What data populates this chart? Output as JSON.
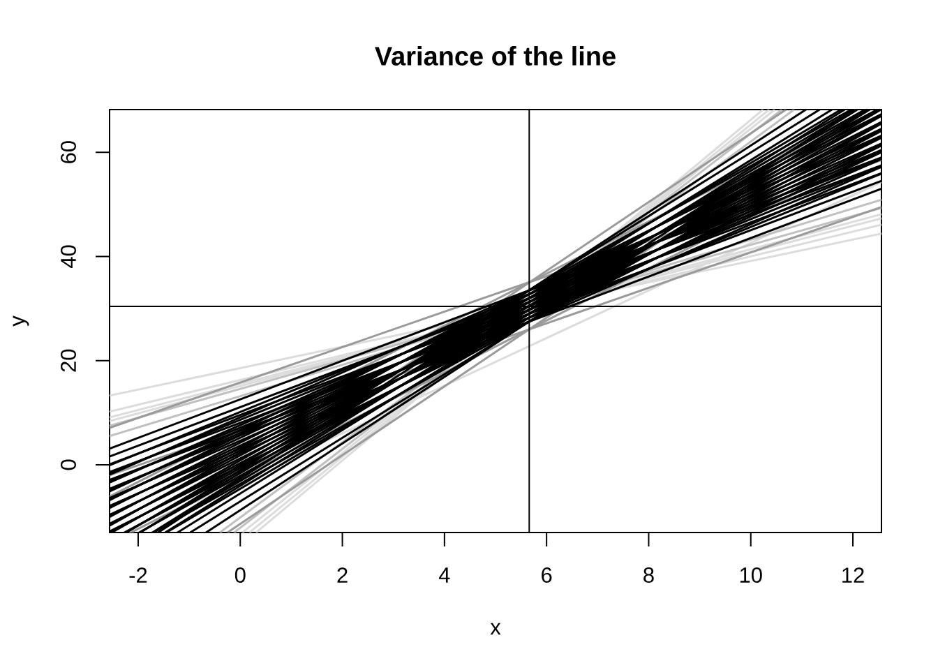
{
  "chart_data": {
    "type": "line",
    "title": "Variance of the line",
    "xlabel": "x",
    "ylabel": "y",
    "xlim": [
      -2.56,
      12.56
    ],
    "ylim": [
      -13,
      68.2
    ],
    "xticks": [
      -2,
      0,
      2,
      4,
      6,
      8,
      10,
      12
    ],
    "yticks": [
      0,
      20,
      40,
      60
    ],
    "series": [
      {
        "color": "#dcdcdc",
        "x": [
          -2.56,
          12.56
        ],
        "values": [
          13.3,
          44.4
        ]
      },
      {
        "color": "#dcdcdc",
        "x": [
          -2.56,
          12.56
        ],
        "values": [
          10.2,
          46.1
        ]
      },
      {
        "color": "#dcdcdc",
        "x": [
          -2.56,
          12.56
        ],
        "values": [
          9.1,
          47.3
        ]
      },
      {
        "color": "#dcdcdc",
        "x": [
          -2.56,
          12.56
        ],
        "values": [
          8.4,
          48.1
        ]
      },
      {
        "color": "#dcdcdc",
        "x": [
          0.31,
          10.24
        ],
        "values": [
          -13,
          68.2
        ]
      },
      {
        "color": "#dcdcdc",
        "x": [
          0.18,
          10.36
        ],
        "values": [
          -13,
          68.2
        ]
      },
      {
        "color": "#dcdcdc",
        "x": [
          0.04,
          10.47
        ],
        "values": [
          -13,
          68.2
        ]
      },
      {
        "color": "#dcdcdc",
        "x": [
          -2.17,
          12.56
        ],
        "values": [
          -13,
          54.3
        ]
      },
      {
        "color": "#c0c0c0",
        "x": [
          -2.56,
          12.56
        ],
        "values": [
          7.5,
          49.3
        ]
      },
      {
        "color": "#c0c0c0",
        "x": [
          -2.56,
          12.56
        ],
        "values": [
          5.5,
          50.9
        ]
      },
      {
        "color": "#c0c0c0",
        "x": [
          -0.12,
          10.61
        ],
        "values": [
          -13,
          68.2
        ]
      },
      {
        "color": "#c0c0c0",
        "x": [
          -0.4,
          10.85
        ],
        "values": [
          -13,
          68.2
        ]
      },
      {
        "color": "#9a9a9a",
        "x": [
          -2.56,
          12.56
        ],
        "values": [
          -2.0,
          49.5
        ]
      },
      {
        "color": "#9a9a9a",
        "x": [
          -2.14,
          12.56
        ],
        "values": [
          -13,
          60.5
        ]
      },
      {
        "color": "#9a9a9a",
        "x": [
          -0.25,
          12.05
        ],
        "values": [
          -13,
          68.2
        ]
      },
      {
        "color": "#9a9a9a",
        "x": [
          -2.56,
          12.56
        ],
        "values": [
          7.1,
          58.5
        ]
      },
      {
        "color": "#9a9a9a",
        "x": [
          -2.56,
          12.3
        ],
        "values": [
          -6.1,
          68.2
        ]
      },
      {
        "color": "#9a9a9a",
        "x": [
          -1.61,
          10.69
        ],
        "values": [
          -13,
          68.2
        ]
      },
      {
        "color": "#000000",
        "x": [
          -2.56,
          12.56
        ],
        "values": [
          -2.9,
          53.0
        ]
      },
      {
        "color": "#000000",
        "x": [
          -2.56,
          12.56
        ],
        "values": [
          -1.4,
          54.5
        ]
      },
      {
        "color": "#000000",
        "x": [
          -2.56,
          12.56
        ],
        "values": [
          0.1,
          56.0
        ]
      },
      {
        "color": "#000000",
        "x": [
          -2.56,
          12.56
        ],
        "values": [
          1.6,
          57.5
        ]
      },
      {
        "color": "#000000",
        "x": [
          -2.56,
          12.56
        ],
        "values": [
          3.1,
          59.0
        ]
      },
      {
        "color": "#000000",
        "x": [
          -2.56,
          12.56
        ],
        "values": [
          -4.6,
          55.9
        ]
      },
      {
        "color": "#000000",
        "x": [
          -2.56,
          12.56
        ],
        "values": [
          -3.1,
          57.4
        ]
      },
      {
        "color": "#000000",
        "x": [
          -2.56,
          12.56
        ],
        "values": [
          -1.6,
          58.9
        ]
      },
      {
        "color": "#000000",
        "x": [
          -2.56,
          12.56
        ],
        "values": [
          -0.1,
          60.4
        ]
      },
      {
        "color": "#000000",
        "x": [
          -2.56,
          12.56
        ],
        "values": [
          -7.9,
          57.2
        ]
      },
      {
        "color": "#000000",
        "x": [
          -2.56,
          12.56
        ],
        "values": [
          -6.4,
          58.7
        ]
      },
      {
        "color": "#000000",
        "x": [
          -2.56,
          12.56
        ],
        "values": [
          -4.9,
          60.2
        ]
      },
      {
        "color": "#000000",
        "x": [
          -2.56,
          12.56
        ],
        "values": [
          -3.4,
          61.7
        ]
      },
      {
        "color": "#000000",
        "x": [
          -2.56,
          12.56
        ],
        "values": [
          -1.9,
          63.2
        ]
      },
      {
        "color": "#000000",
        "x": [
          -2.56,
          12.56
        ],
        "values": [
          -9.6,
          60.0
        ]
      },
      {
        "color": "#000000",
        "x": [
          -2.56,
          12.56
        ],
        "values": [
          -8.1,
          61.5
        ]
      },
      {
        "color": "#000000",
        "x": [
          -2.56,
          12.56
        ],
        "values": [
          -6.6,
          63.0
        ]
      },
      {
        "color": "#000000",
        "x": [
          -2.56,
          12.56
        ],
        "values": [
          -5.1,
          64.5
        ]
      },
      {
        "color": "#000000",
        "x": [
          -2.56,
          12.56
        ],
        "values": [
          -12.8,
          61.3
        ]
      },
      {
        "color": "#000000",
        "x": [
          -2.56,
          12.56
        ],
        "values": [
          -11.3,
          62.8
        ]
      },
      {
        "color": "#000000",
        "x": [
          -2.56,
          12.56
        ],
        "values": [
          -9.8,
          64.3
        ]
      },
      {
        "color": "#000000",
        "x": [
          -2.56,
          12.56
        ],
        "values": [
          -8.3,
          65.8
        ]
      },
      {
        "color": "#000000",
        "x": [
          -2.56,
          12.56
        ],
        "values": [
          -6.8,
          67.3
        ]
      },
      {
        "color": "#000000",
        "x": [
          -2.27,
          12.56
        ],
        "values": [
          -13,
          64.1
        ]
      },
      {
        "color": "#000000",
        "x": [
          -2.56,
          12.56
        ],
        "values": [
          -13,
          65.6
        ]
      },
      {
        "color": "#000000",
        "x": [
          -2.56,
          12.56
        ],
        "values": [
          -11.5,
          67.1
        ]
      },
      {
        "color": "#000000",
        "x": [
          -2.56,
          12.48
        ],
        "values": [
          -10.0,
          68.2
        ]
      },
      {
        "color": "#000000",
        "x": [
          -1.7,
          12.56
        ],
        "values": [
          -13,
          65.5
        ]
      },
      {
        "color": "#000000",
        "x": [
          -1.98,
          12.56
        ],
        "values": [
          -13,
          67.0
        ]
      },
      {
        "color": "#000000",
        "x": [
          -2.25,
          12.51
        ],
        "values": [
          -13,
          68.2
        ]
      },
      {
        "color": "#000000",
        "x": [
          -2.52,
          12.24
        ],
        "values": [
          -13,
          68.2
        ]
      },
      {
        "color": "#000000",
        "x": [
          -2.56,
          11.97
        ],
        "values": [
          -11.7,
          68.2
        ]
      },
      {
        "color": "#000000",
        "x": [
          -1.45,
          12.55
        ],
        "values": [
          -13,
          68.2
        ]
      },
      {
        "color": "#000000",
        "x": [
          -1.71,
          12.29
        ],
        "values": [
          -13,
          68.2
        ]
      },
      {
        "color": "#000000",
        "x": [
          -1.97,
          12.03
        ],
        "values": [
          -13,
          68.2
        ]
      },
      {
        "color": "#000000",
        "x": [
          -2.23,
          11.77
        ],
        "values": [
          -13,
          68.2
        ]
      },
      {
        "color": "#000000",
        "x": [
          -0.98,
          12.33
        ],
        "values": [
          -13,
          68.2
        ]
      },
      {
        "color": "#000000",
        "x": [
          -1.23,
          12.09
        ],
        "values": [
          -13,
          68.2
        ]
      },
      {
        "color": "#000000",
        "x": [
          -1.47,
          11.84
        ],
        "values": [
          -13,
          68.2
        ]
      },
      {
        "color": "#000000",
        "x": [
          -1.72,
          11.59
        ],
        "values": [
          -13,
          68.2
        ]
      },
      {
        "color": "#000000",
        "x": [
          -1.96,
          11.35
        ],
        "values": [
          -13,
          68.2
        ]
      },
      {
        "color": "#000000",
        "x": [
          -0.67,
          12.02
        ],
        "values": [
          -13,
          68.2
        ]
      },
      {
        "color": "#000000",
        "x": [
          -1.61,
          11.08
        ],
        "values": [
          -13,
          68.2
        ]
      }
    ],
    "ref_lines": [
      {
        "axis": "x",
        "value": 5.66,
        "color": "#000000"
      },
      {
        "axis": "y",
        "value": 30.4,
        "color": "#000000"
      }
    ]
  }
}
